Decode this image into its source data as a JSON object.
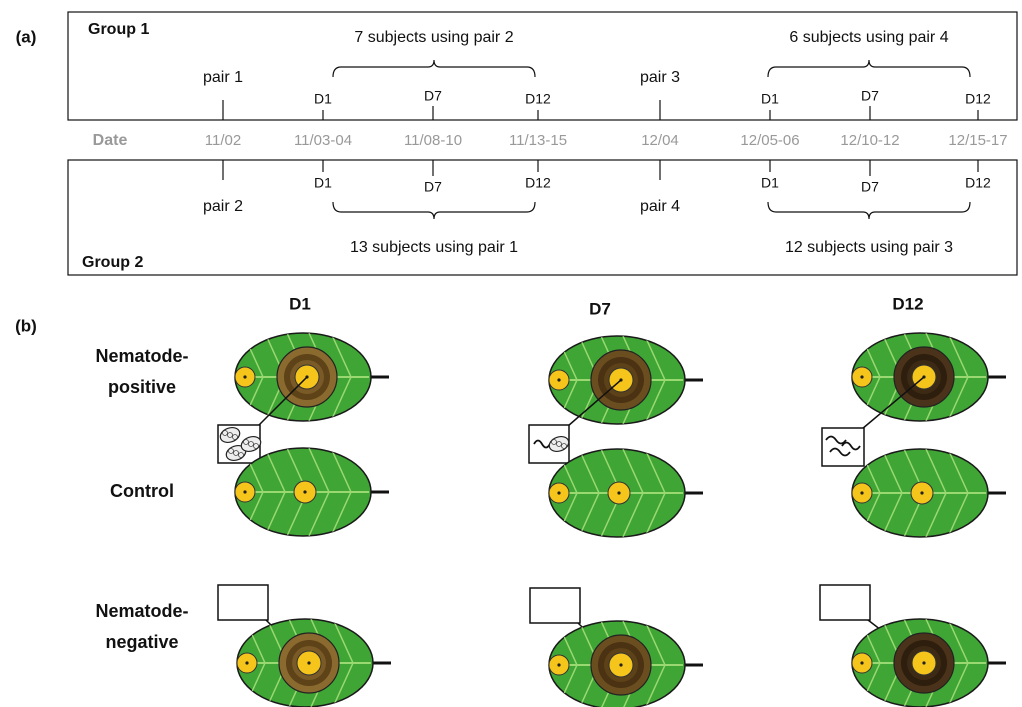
{
  "panel_a": {
    "label": "(a)",
    "date_label": "Date",
    "dates": [
      "11/02",
      "11/03-04",
      "11/08-10",
      "11/13-15",
      "12/04",
      "12/05-06",
      "12/10-12",
      "12/15-17"
    ],
    "group1": {
      "title": "Group 1",
      "pair_labels": [
        "pair 1",
        "pair 3"
      ],
      "day_labels": [
        "D1",
        "D7",
        "D12",
        "D1",
        "D7",
        "D12"
      ],
      "brackets": [
        "7 subjects using pair 2",
        "6 subjects using pair 4"
      ]
    },
    "group2": {
      "title": "Group 2",
      "pair_labels": [
        "pair 2",
        "pair 4"
      ],
      "day_labels": [
        "D1",
        "D7",
        "D12",
        "D1",
        "D7",
        "D12"
      ],
      "brackets": [
        "13 subjects using pair 1",
        "12 subjects using pair 3"
      ]
    }
  },
  "panel_b": {
    "label": "(b)",
    "columns": [
      "D1",
      "D7",
      "D12"
    ],
    "rows": [
      [
        "Nematode-",
        "positive"
      ],
      [
        "Control"
      ],
      [
        "Nematode-",
        "negative"
      ]
    ]
  }
}
